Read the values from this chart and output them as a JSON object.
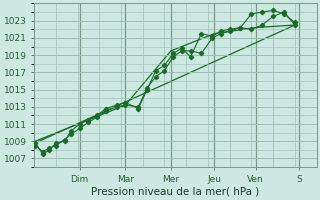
{
  "title": "",
  "xlabel": "Pression niveau de la mer( hPa )",
  "background_color": "#cce8e0",
  "grid_color": "#9bbfb5",
  "line_color": "#1a6b2a",
  "ylim": [
    1006,
    1025
  ],
  "yticks": [
    1007,
    1009,
    1011,
    1013,
    1015,
    1017,
    1019,
    1021,
    1023
  ],
  "xlim": [
    0,
    13
  ],
  "day_labels": [
    "Dim",
    "Mar",
    "Mer",
    "Jeu",
    "Ven",
    "S"
  ],
  "day_positions": [
    2.1,
    4.2,
    6.3,
    8.3,
    10.2,
    12.2
  ],
  "series1_x": [
    0.05,
    0.4,
    0.7,
    1.0,
    1.4,
    1.7,
    2.1,
    2.5,
    2.9,
    3.3,
    3.8,
    4.2,
    4.8,
    5.2,
    5.6,
    6.0,
    6.4,
    6.8,
    7.2,
    7.7,
    8.2,
    8.6,
    9.0,
    9.5,
    10.0,
    10.5,
    11.0,
    11.5,
    12.0
  ],
  "series1_y": [
    1008.5,
    1007.8,
    1008.2,
    1008.5,
    1009.2,
    1009.8,
    1010.5,
    1011.2,
    1011.8,
    1012.5,
    1013.0,
    1013.2,
    1013.0,
    1015.2,
    1016.5,
    1017.2,
    1018.8,
    1019.5,
    1019.5,
    1019.2,
    1021.0,
    1021.5,
    1021.8,
    1022.2,
    1022.0,
    1022.5,
    1023.5,
    1024.0,
    1022.5
  ],
  "series2_x": [
    0.05,
    0.4,
    0.7,
    1.0,
    1.4,
    1.7,
    2.1,
    2.5,
    2.9,
    3.3,
    3.8,
    4.2,
    4.8,
    5.2,
    5.6,
    6.0,
    6.4,
    6.8,
    7.2,
    7.7,
    8.2,
    8.6,
    9.0,
    9.5,
    10.0,
    10.5,
    11.0,
    11.5,
    12.0
  ],
  "series2_y": [
    1008.8,
    1007.5,
    1008.0,
    1008.8,
    1009.0,
    1010.2,
    1011.0,
    1011.5,
    1012.0,
    1012.8,
    1013.2,
    1013.5,
    1012.8,
    1015.0,
    1017.2,
    1017.8,
    1019.2,
    1019.8,
    1018.8,
    1021.5,
    1021.2,
    1021.8,
    1022.0,
    1022.2,
    1023.8,
    1024.0,
    1024.2,
    1023.8,
    1022.8
  ],
  "trend1_x": [
    0.05,
    12.0
  ],
  "trend1_y": [
    1008.8,
    1022.5
  ],
  "trend2_x": [
    0.05,
    4.2,
    6.3,
    8.3,
    10.2,
    12.0
  ],
  "trend2_y": [
    1009.0,
    1013.2,
    1019.5,
    1021.5,
    1022.2,
    1022.5
  ]
}
